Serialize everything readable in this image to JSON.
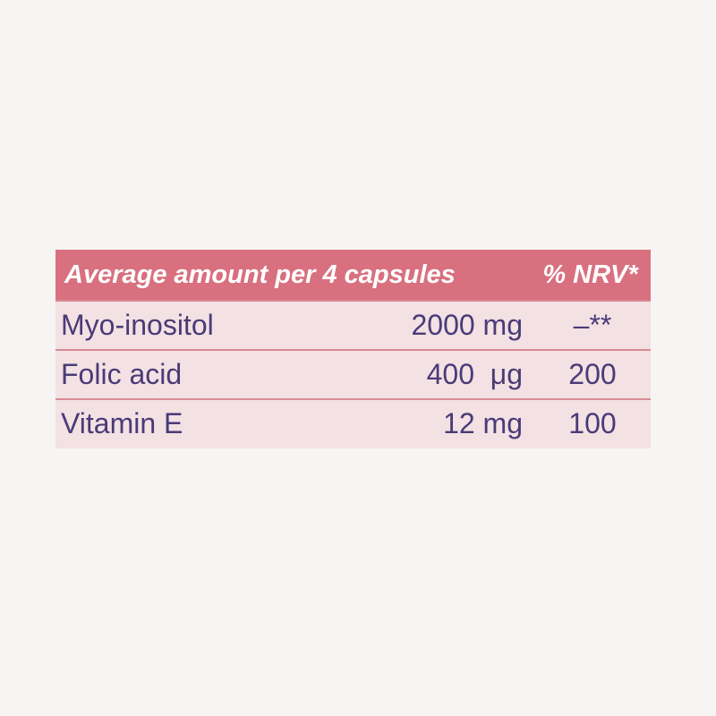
{
  "table": {
    "header": [
      "Average amount per 4 capsules",
      "% NRV*"
    ],
    "rows": [
      [
        "Myo-inositol",
        "2000 mg",
        "–**"
      ],
      [
        "Folic acid",
        "400  μg",
        "200"
      ],
      [
        "Vitamin E",
        "12 mg",
        "100"
      ]
    ]
  }
}
